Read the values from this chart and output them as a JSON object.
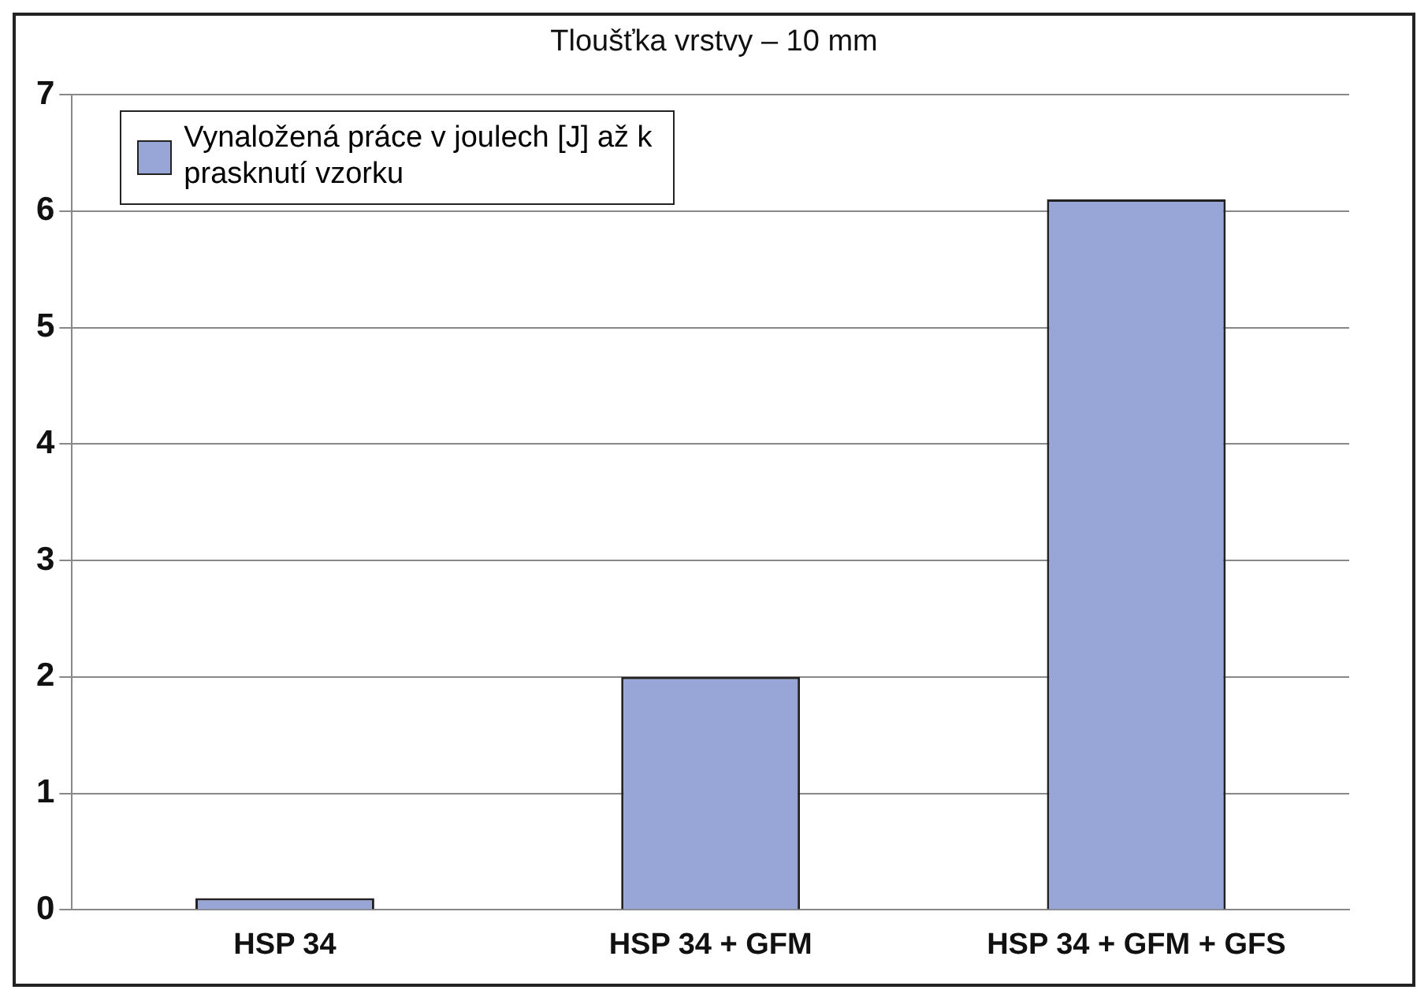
{
  "chart_data": {
    "type": "bar",
    "title": "Tloušťka vrstvy – 10 mm",
    "categories": [
      "HSP 34",
      "HSP 34 + GFM",
      "HSP 34 + GFM + GFS"
    ],
    "series": [
      {
        "name": "Vynaložená práce v joulech [J] až k prasknutí vzorku",
        "color": "#97a6d6",
        "values": [
          0.1,
          2.0,
          6.1
        ]
      }
    ],
    "ylim": [
      0,
      7
    ],
    "yticks": [
      0,
      1,
      2,
      3,
      4,
      5,
      6,
      7
    ],
    "grid": "y",
    "legend": "top left"
  }
}
